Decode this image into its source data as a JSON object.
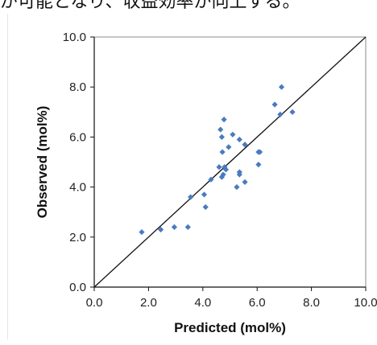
{
  "caption": "が可能となり、収益効率が向上する。",
  "chart_data": {
    "type": "scatter",
    "xlabel": "Predicted (mol%)",
    "ylabel": "Observed (mol%)",
    "xlim": [
      0,
      10
    ],
    "ylim": [
      0,
      10
    ],
    "xticks": [
      "0.0",
      "2.0",
      "4.0",
      "6.0",
      "8.0",
      "10.0"
    ],
    "yticks": [
      "0.0",
      "2.0",
      "4.0",
      "6.0",
      "8.0",
      "10.0"
    ],
    "grid": false,
    "reference_line": "y = x",
    "marker_color": "#4a7bbf",
    "series": [
      {
        "points": [
          [
            1.75,
            2.2
          ],
          [
            2.45,
            2.3
          ],
          [
            2.95,
            2.4
          ],
          [
            3.45,
            2.4
          ],
          [
            3.55,
            3.6
          ],
          [
            4.05,
            3.7
          ],
          [
            4.1,
            3.2
          ],
          [
            4.3,
            4.3
          ],
          [
            4.6,
            4.8
          ],
          [
            4.65,
            6.3
          ],
          [
            4.7,
            6.0
          ],
          [
            4.7,
            4.4
          ],
          [
            4.72,
            5.4
          ],
          [
            4.75,
            4.5
          ],
          [
            4.78,
            6.7
          ],
          [
            4.8,
            4.8
          ],
          [
            4.85,
            4.7
          ],
          [
            4.95,
            5.6
          ],
          [
            5.1,
            6.1
          ],
          [
            5.25,
            4.0
          ],
          [
            5.35,
            5.9
          ],
          [
            5.35,
            4.5
          ],
          [
            5.35,
            4.6
          ],
          [
            5.55,
            4.2
          ],
          [
            5.55,
            5.7
          ],
          [
            6.05,
            4.9
          ],
          [
            6.05,
            5.4
          ],
          [
            6.1,
            5.4
          ],
          [
            6.65,
            7.3
          ],
          [
            6.85,
            6.9
          ],
          [
            6.9,
            8.0
          ],
          [
            7.3,
            7.0
          ]
        ]
      }
    ]
  }
}
